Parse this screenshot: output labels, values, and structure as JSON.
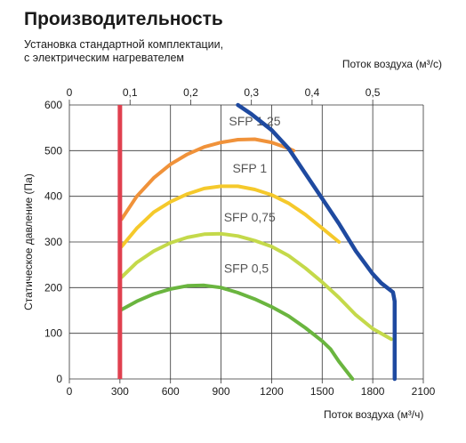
{
  "header": {
    "title": "Производительность",
    "subtitle_line1": "Установка стандартной комплектации,",
    "subtitle_line2": "с электрическим нагревателем"
  },
  "chart_data": {
    "type": "line",
    "title": "Производительность",
    "ylabel": "Статическое давление (Па)",
    "xlabel": "Поток воздуха (м³/ч)",
    "x2label": "Поток воздуха (м³/с)",
    "xlim": [
      0,
      2100
    ],
    "ylim": [
      0,
      600
    ],
    "x_ticks": [
      0,
      300,
      600,
      900,
      1200,
      1500,
      1800,
      2100
    ],
    "y_ticks": [
      0,
      100,
      200,
      300,
      400,
      500,
      600
    ],
    "x2_ticks": [
      "0",
      "0,1",
      "0,2",
      "0,3",
      "0,4",
      "0,5"
    ],
    "x2_tick_positions_m3h": [
      0,
      360,
      720,
      1080,
      1440,
      1800
    ],
    "grid": true,
    "series": [
      {
        "name": "SFP 1,25",
        "color": "#f0923a",
        "label_at": [
          1100,
          555
        ],
        "points": [
          [
            310,
            350
          ],
          [
            400,
            400
          ],
          [
            500,
            440
          ],
          [
            600,
            470
          ],
          [
            700,
            492
          ],
          [
            800,
            508
          ],
          [
            900,
            518
          ],
          [
            1000,
            524
          ],
          [
            1100,
            525
          ],
          [
            1200,
            518
          ],
          [
            1300,
            505
          ],
          [
            1330,
            500
          ]
        ]
      },
      {
        "name": "SFP 1",
        "color": "#f5c92b",
        "label_at": [
          1070,
          452
        ],
        "points": [
          [
            310,
            290
          ],
          [
            400,
            330
          ],
          [
            500,
            365
          ],
          [
            600,
            388
          ],
          [
            700,
            405
          ],
          [
            800,
            417
          ],
          [
            900,
            422
          ],
          [
            1000,
            422
          ],
          [
            1100,
            415
          ],
          [
            1200,
            403
          ],
          [
            1300,
            385
          ],
          [
            1400,
            360
          ],
          [
            1500,
            330
          ],
          [
            1600,
            300
          ]
        ]
      },
      {
        "name": "SFP 0,75",
        "color": "#c4d94a",
        "label_at": [
          1070,
          345
        ],
        "points": [
          [
            310,
            223
          ],
          [
            400,
            255
          ],
          [
            500,
            280
          ],
          [
            600,
            298
          ],
          [
            700,
            310
          ],
          [
            800,
            317
          ],
          [
            900,
            318
          ],
          [
            1000,
            313
          ],
          [
            1100,
            303
          ],
          [
            1200,
            290
          ],
          [
            1300,
            270
          ],
          [
            1400,
            243
          ],
          [
            1500,
            212
          ],
          [
            1600,
            178
          ],
          [
            1700,
            140
          ],
          [
            1800,
            110
          ],
          [
            1910,
            87
          ]
        ]
      },
      {
        "name": "SFP 0,5",
        "color": "#6ab53f",
        "label_at": [
          1050,
          233
        ],
        "points": [
          [
            310,
            152
          ],
          [
            400,
            170
          ],
          [
            500,
            186
          ],
          [
            600,
            197
          ],
          [
            700,
            204
          ],
          [
            800,
            205
          ],
          [
            900,
            200
          ],
          [
            1000,
            189
          ],
          [
            1100,
            175
          ],
          [
            1200,
            158
          ],
          [
            1300,
            138
          ],
          [
            1400,
            112
          ],
          [
            1500,
            83
          ],
          [
            1550,
            65
          ],
          [
            1600,
            38
          ],
          [
            1680,
            0
          ]
        ]
      }
    ],
    "envelope": {
      "name": "",
      "color": "#1f4aa0",
      "points": [
        [
          1000,
          600
        ],
        [
          1080,
          580
        ],
        [
          1200,
          545
        ],
        [
          1300,
          505
        ],
        [
          1400,
          450
        ],
        [
          1500,
          395
        ],
        [
          1600,
          340
        ],
        [
          1700,
          280
        ],
        [
          1800,
          230
        ],
        [
          1850,
          210
        ],
        [
          1920,
          190
        ],
        [
          1930,
          170
        ],
        [
          1930,
          0
        ]
      ]
    },
    "min_flow_line": {
      "color": "#e0404f",
      "x": 300
    }
  }
}
